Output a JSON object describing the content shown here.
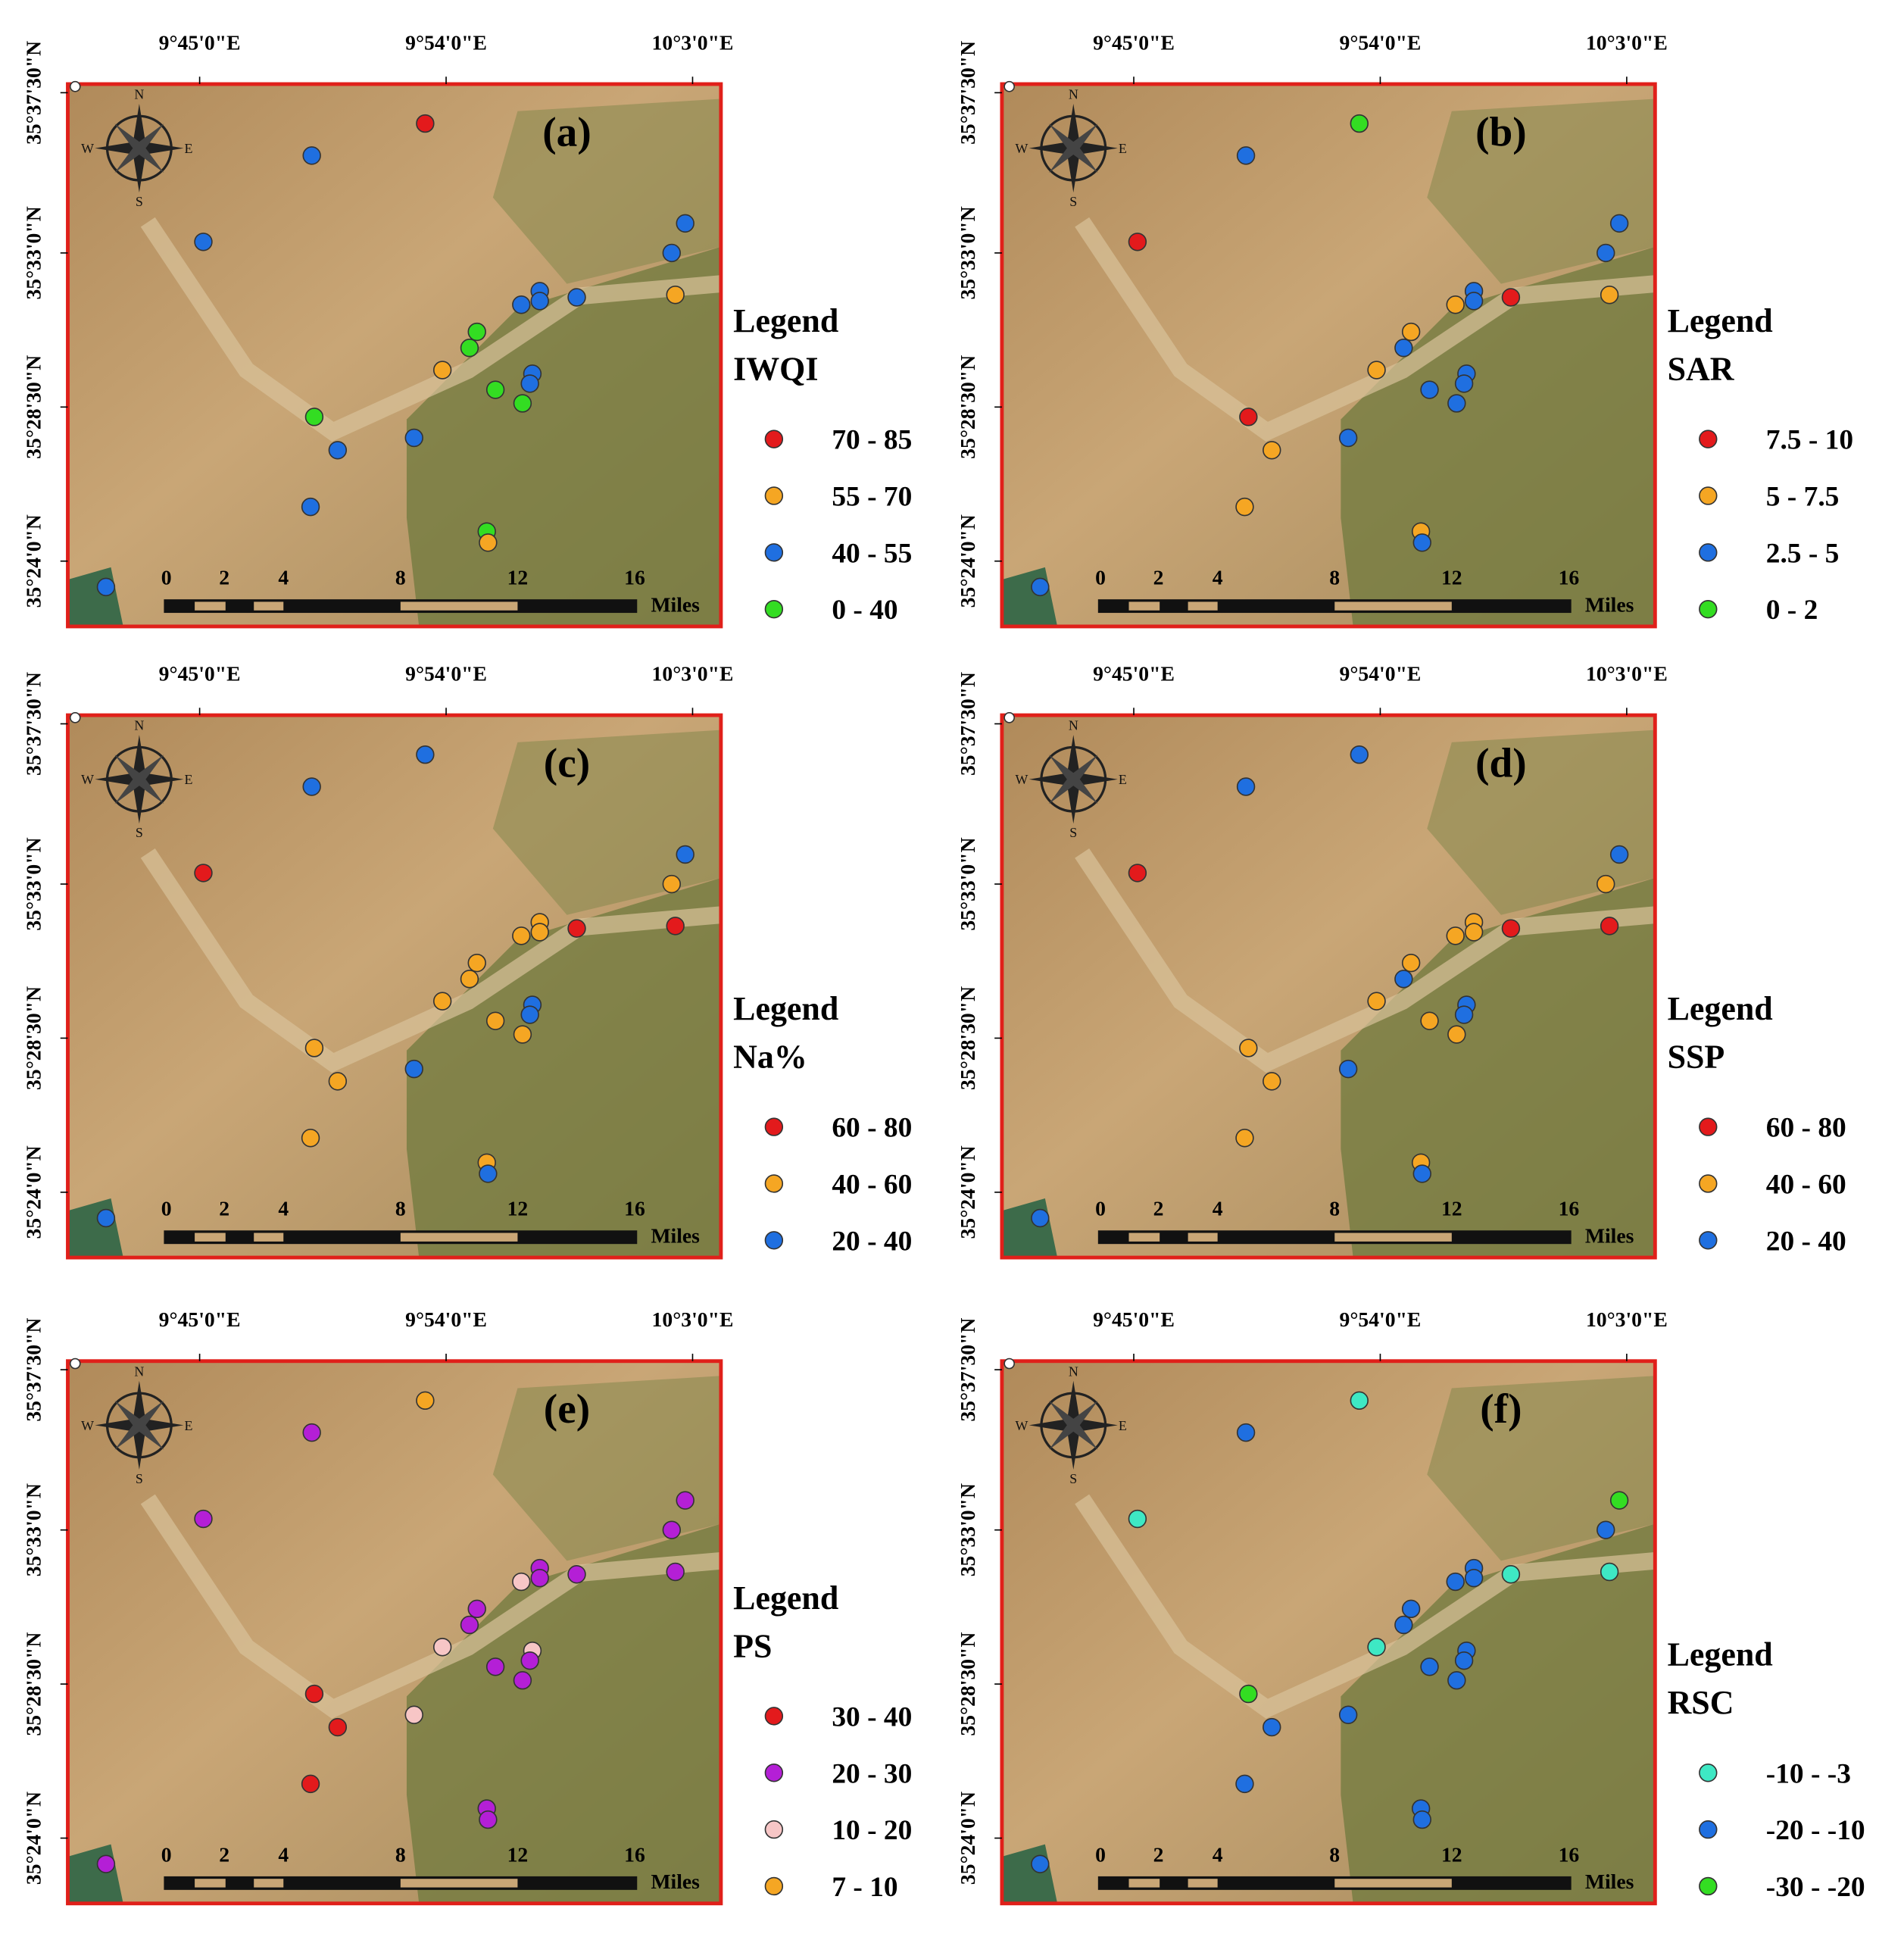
{
  "lon_labels": [
    "9°45'0\"E",
    "9°54'0\"E",
    "10°3'0\"E"
  ],
  "lat_labels": [
    "35°37'30\"N",
    "35°33'0\"N",
    "35°28'30\"N",
    "35°24'0\"N"
  ],
  "scale_labels": [
    "0",
    "2",
    "4",
    "8",
    "12",
    "16"
  ],
  "scale_unit": "Miles",
  "compass": [
    "N",
    "S",
    "E",
    "W"
  ],
  "legend_heading": "Legend",
  "panels": [
    {
      "label": "(a)",
      "legend_title": "IWQI",
      "classes": [
        {
          "label": "70 - 85",
          "color": "#e31a1c"
        },
        {
          "label": "55 - 70",
          "color": "#f5a623"
        },
        {
          "label": "40 - 55",
          "color": "#1f6fe0"
        },
        {
          "label": "0 - 40",
          "color": "#33dd22"
        }
      ],
      "site_colors": [
        "#e31a1c",
        "#1f6fe0",
        "#1f6fe0",
        "#1f6fe0",
        "#1f6fe0",
        "#f5a623",
        "#1f6fe0",
        "#1f6fe0",
        "#1f6fe0",
        "#1f6fe0",
        "#33dd22",
        "#33dd22",
        "#f5a623",
        "#1f6fe0",
        "#1f6fe0",
        "#33dd22",
        "#33dd22",
        "#33dd22",
        "#1f6fe0",
        "#1f6fe0",
        "#1f6fe0",
        "#33dd22",
        "#f5a623",
        "#1f6fe0"
      ]
    },
    {
      "label": "(b)",
      "legend_title": "SAR",
      "classes": [
        {
          "label": "7.5 - 10",
          "color": "#e31a1c"
        },
        {
          "label": "5 - 7.5",
          "color": "#f5a623"
        },
        {
          "label": "2.5 - 5",
          "color": "#1f6fe0"
        },
        {
          "label": "0 - 2",
          "color": "#33dd22"
        }
      ],
      "site_colors": [
        "#33dd22",
        "#1f6fe0",
        "#e31a1c",
        "#1f6fe0",
        "#1f6fe0",
        "#f5a623",
        "#e31a1c",
        "#1f6fe0",
        "#1f6fe0",
        "#f5a623",
        "#f5a623",
        "#1f6fe0",
        "#f5a623",
        "#1f6fe0",
        "#1f6fe0",
        "#1f6fe0",
        "#1f6fe0",
        "#e31a1c",
        "#f5a623",
        "#1f6fe0",
        "#f5a623",
        "#f5a623",
        "#1f6fe0",
        "#1f6fe0"
      ]
    },
    {
      "label": "(c)",
      "legend_title": "Na%",
      "classes": [
        {
          "label": "60 - 80",
          "color": "#e31a1c"
        },
        {
          "label": "40 - 60",
          "color": "#f5a623"
        },
        {
          "label": "20 - 40",
          "color": "#1f6fe0"
        }
      ],
      "site_colors": [
        "#1f6fe0",
        "#1f6fe0",
        "#e31a1c",
        "#1f6fe0",
        "#f5a623",
        "#e31a1c",
        "#e31a1c",
        "#f5a623",
        "#f5a623",
        "#f5a623",
        "#f5a623",
        "#f5a623",
        "#f5a623",
        "#1f6fe0",
        "#1f6fe0",
        "#f5a623",
        "#f5a623",
        "#f5a623",
        "#f5a623",
        "#1f6fe0",
        "#f5a623",
        "#f5a623",
        "#1f6fe0",
        "#1f6fe0"
      ]
    },
    {
      "label": "(d)",
      "legend_title": "SSP",
      "classes": [
        {
          "label": "60 - 80",
          "color": "#e31a1c"
        },
        {
          "label": "40 - 60",
          "color": "#f5a623"
        },
        {
          "label": "20 - 40",
          "color": "#1f6fe0"
        }
      ],
      "site_colors": [
        "#1f6fe0",
        "#1f6fe0",
        "#e31a1c",
        "#1f6fe0",
        "#f5a623",
        "#e31a1c",
        "#e31a1c",
        "#f5a623",
        "#f5a623",
        "#f5a623",
        "#f5a623",
        "#1f6fe0",
        "#f5a623",
        "#1f6fe0",
        "#1f6fe0",
        "#f5a623",
        "#f5a623",
        "#f5a623",
        "#f5a623",
        "#1f6fe0",
        "#f5a623",
        "#f5a623",
        "#1f6fe0",
        "#1f6fe0"
      ]
    },
    {
      "label": "(e)",
      "legend_title": "PS",
      "classes": [
        {
          "label": "30 - 40",
          "color": "#e31a1c"
        },
        {
          "label": "20 - 30",
          "color": "#b41fd6"
        },
        {
          "label": "10 - 20",
          "color": "#f7c6c6"
        },
        {
          "label": "7 - 10",
          "color": "#f5a623"
        }
      ],
      "site_colors": [
        "#f5a623",
        "#b41fd6",
        "#b41fd6",
        "#b41fd6",
        "#b41fd6",
        "#b41fd6",
        "#b41fd6",
        "#b41fd6",
        "#b41fd6",
        "#f7c6c6",
        "#b41fd6",
        "#b41fd6",
        "#f7c6c6",
        "#f7c6c6",
        "#b41fd6",
        "#b41fd6",
        "#b41fd6",
        "#e31a1c",
        "#e31a1c",
        "#f7c6c6",
        "#e31a1c",
        "#b41fd6",
        "#b41fd6",
        "#b41fd6"
      ]
    },
    {
      "label": "(f)",
      "legend_title": "RSC",
      "classes": [
        {
          "label": "-10 - -3",
          "color": "#3ee8c4"
        },
        {
          "label": "-20 - -10",
          "color": "#1f6fe0"
        },
        {
          "label": "-30 - -20",
          "color": "#33dd22"
        }
      ],
      "site_colors": [
        "#3ee8c4",
        "#1f6fe0",
        "#3ee8c4",
        "#33dd22",
        "#1f6fe0",
        "#3ee8c4",
        "#3ee8c4",
        "#1f6fe0",
        "#1f6fe0",
        "#1f6fe0",
        "#1f6fe0",
        "#1f6fe0",
        "#3ee8c4",
        "#1f6fe0",
        "#1f6fe0",
        "#1f6fe0",
        "#1f6fe0",
        "#33dd22",
        "#1f6fe0",
        "#1f6fe0",
        "#1f6fe0",
        "#1f6fe0",
        "#1f6fe0",
        "#1f6fe0"
      ]
    }
  ]
}
